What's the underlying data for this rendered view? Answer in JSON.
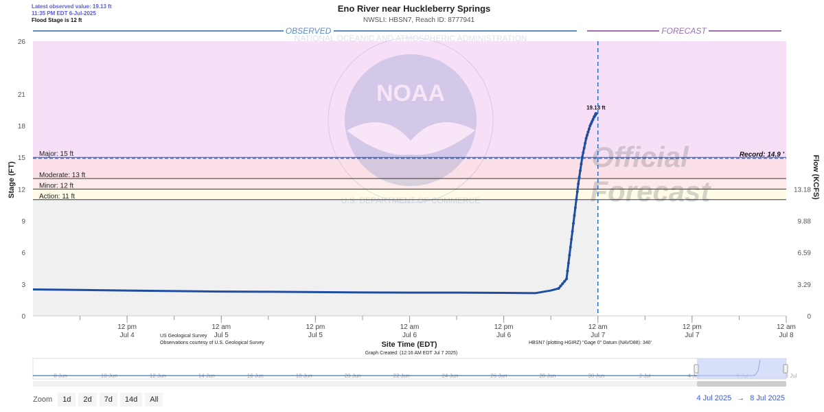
{
  "header": {
    "latest_value": "Latest observed value: 19.13 ft",
    "latest_time": "11:35 PM EDT 6-Jul-2025",
    "flood_stage": "Flood Stage is 12 ft",
    "title": "Eno River near Huckleberry Springs",
    "subtitle": "NWSLI: HBSN7, Reach ID: 8777941"
  },
  "sections": {
    "observed": "OBSERVED",
    "forecast": "FORECAST"
  },
  "watermark": {
    "noaa": "NOAA",
    "ring_top": "NATIONAL OCEANIC AND ATMOSPHERIC ADMINISTRATION",
    "ring_bottom": "U.S. DEPARTMENT OF COMMERCE",
    "official": "Official",
    "forecast": "Forecast"
  },
  "colors": {
    "major": "#f7e0f7",
    "moderate": "#fbe0e8",
    "minor": "#fdeaea",
    "action": "#fffbe6",
    "normal": "#f0f0f0",
    "line": "#1f4ea0",
    "observed_bar": "#5b8ac6",
    "forecast_bar": "#9b6fb5",
    "now_line": "#1f6ed4"
  },
  "footer": {
    "usgs_1": "US Geological Survey",
    "usgs_2": "Observations courtesy of U.S. Geological Survey",
    "datum": "HBSN7 (plotting HGIRZ) \"Gage 0\" Datum (NAVD88): 340'",
    "created": "Graph Created: (12:16 AM EDT Jul 7 2025)"
  },
  "navigator": {
    "labels": [
      "8 Jun",
      "10 Jun",
      "12 Jun",
      "14 Jun",
      "16 Jun",
      "18 Jun",
      "20 Jun",
      "22 Jun",
      "24 Jun",
      "26 Jun",
      "28 Jun",
      "30 Jun",
      "2 Jul",
      "4 Jul",
      "6 Jul",
      "8 Jul"
    ]
  },
  "zoom": {
    "label": "Zoom",
    "buttons": [
      "1d",
      "2d",
      "7d",
      "14d",
      "All"
    ]
  },
  "range": {
    "from": "4 Jul 2025",
    "arrow": "→",
    "to": "8 Jul 2025"
  },
  "chart_data": {
    "type": "line",
    "title": "Eno River near Huckleberry Springs",
    "subtitle": "NWSLI: HBSN7, Reach ID: 8777941",
    "xlabel": "Site Time (EDT)",
    "ylabel": "Stage (FT)",
    "y2label": "Flow (KCFS)",
    "ylim": [
      0,
      26
    ],
    "xlim_hours": [
      -12,
      84
    ],
    "y_ticks": [
      "0",
      "3",
      "6",
      "9",
      "12",
      "15",
      "18",
      "21",
      "26"
    ],
    "y_tick_values": [
      0,
      3,
      6,
      9,
      12,
      15,
      18,
      21,
      26
    ],
    "y2_ticks": [
      "0",
      "3.29",
      "6.59",
      "9.88",
      "13.18"
    ],
    "y2_tick_values": [
      0,
      3,
      6,
      9,
      12
    ],
    "x_ticks": [
      {
        "line1": "12 pm",
        "line2": "Jul 4",
        "hour": 0
      },
      {
        "line1": "12 am",
        "line2": "Jul 5",
        "hour": 12
      },
      {
        "line1": "12 pm",
        "line2": "Jul 5",
        "hour": 24
      },
      {
        "line1": "12 am",
        "line2": "Jul 6",
        "hour": 36
      },
      {
        "line1": "12 pm",
        "line2": "Jul 6",
        "hour": 48
      },
      {
        "line1": "12 am",
        "line2": "Jul 7",
        "hour": 60
      },
      {
        "line1": "12 pm",
        "line2": "Jul 7",
        "hour": 72
      },
      {
        "line1": "12 am",
        "line2": "Jul 8",
        "hour": 84
      }
    ],
    "thresholds": [
      {
        "name": "Major",
        "label": "Major: 15 ft",
        "value": 15
      },
      {
        "name": "Moderate",
        "label": "Moderate: 13 ft",
        "value": 13
      },
      {
        "name": "Minor",
        "label": "Minor: 12 ft",
        "value": 12
      },
      {
        "name": "Action",
        "label": "Action: 11 ft",
        "value": 11
      }
    ],
    "record": {
      "label": "Record: 14.9 '",
      "value": 14.9
    },
    "now_hour": 60,
    "latest_label": "19.13 ft",
    "series": [
      {
        "hours": [
          -12,
          -6,
          0,
          6,
          12,
          18,
          24,
          30,
          36,
          42,
          48,
          52,
          54,
          55,
          56,
          56.5,
          57,
          57.5,
          58,
          58.5,
          59,
          59.5,
          59.75
        ],
        "values": [
          2.5,
          2.45,
          2.4,
          2.35,
          2.3,
          2.28,
          2.25,
          2.22,
          2.2,
          2.2,
          2.18,
          2.15,
          2.4,
          2.6,
          3.5,
          6.5,
          9.5,
          12.5,
          15.0,
          16.8,
          18.0,
          18.8,
          19.13
        ]
      }
    ]
  }
}
